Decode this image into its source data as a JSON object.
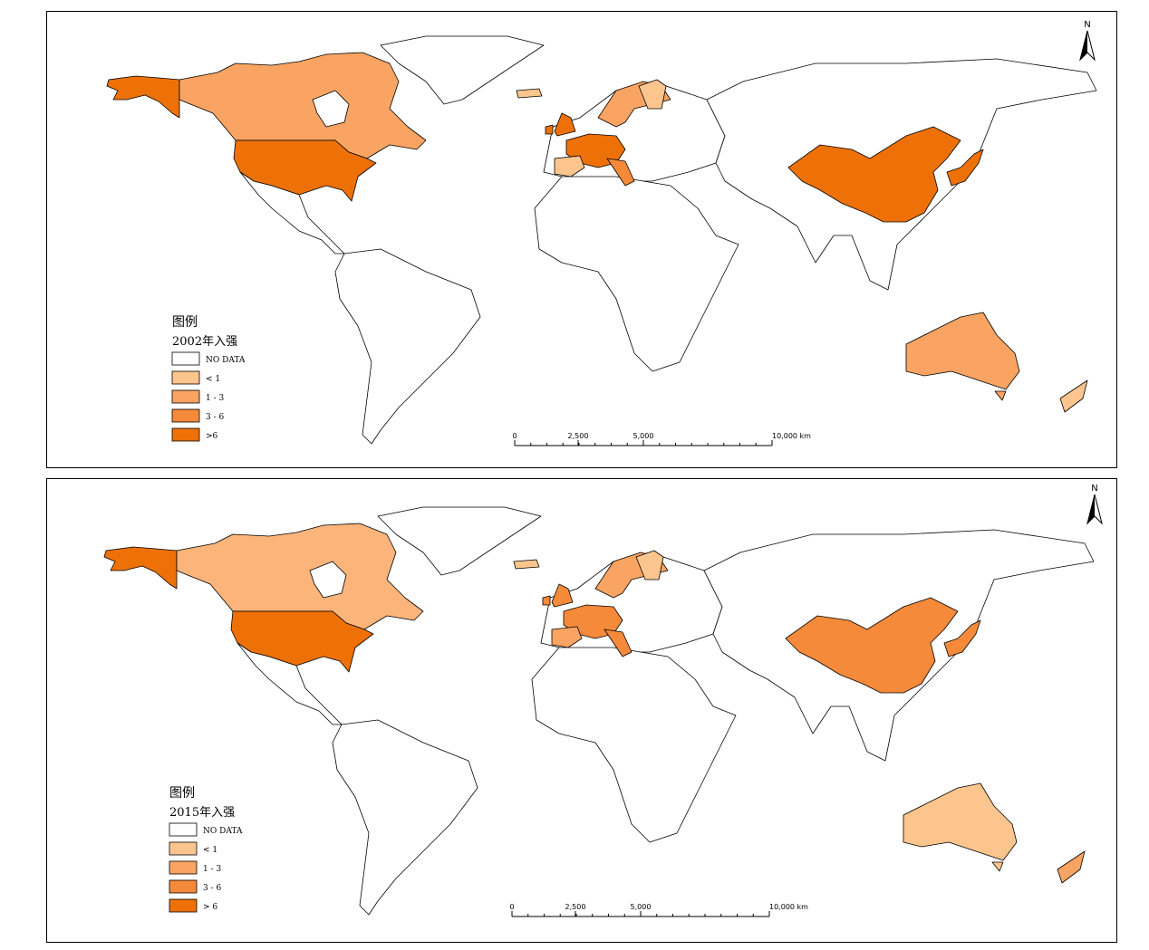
{
  "panels": [
    {
      "legend_title": "图例",
      "legend_subtitle": "2002年入强",
      "legend_items": [
        "NO DATA",
        "< 1",
        "1 - 3",
        "3 - 6",
        ">6"
      ],
      "legend_colors": [
        "#ffffff",
        "#fcc58e",
        "#f9a462",
        "#f58a3a",
        "#ee7108"
      ],
      "scale_labels": [
        "0",
        "2,500",
        "5,000",
        "10,000 km"
      ],
      "north": "N"
    },
    {
      "legend_title": "图例",
      "legend_subtitle": "2015年入强",
      "legend_items": [
        "NO DATA",
        "< 1",
        "1 - 3",
        "3 - 6",
        "> 6"
      ],
      "legend_colors": [
        "#ffffff",
        "#fcc58e",
        "#f9a462",
        "#f58a3a",
        "#ee7108"
      ],
      "scale_labels": [
        "0",
        "2,500",
        "5,000",
        "10,000 km"
      ],
      "north": "N"
    }
  ]
}
